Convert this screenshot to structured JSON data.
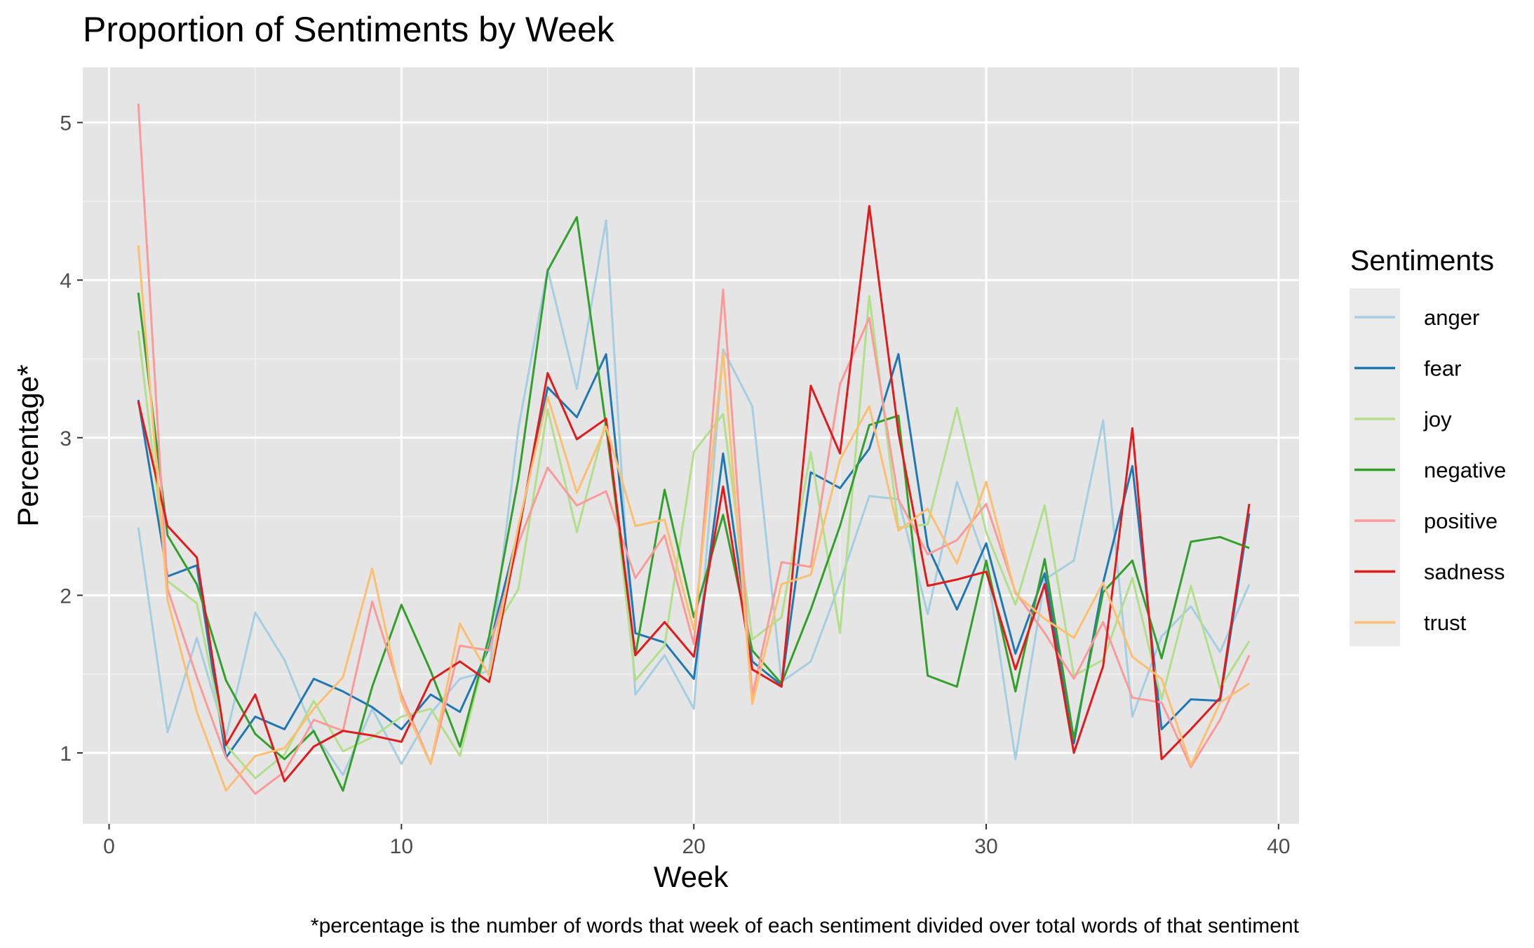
{
  "chart_data": {
    "type": "line",
    "title": "Proportion of Sentiments by Week",
    "xlabel": "Week",
    "ylabel": "Percentage*",
    "caption": "*percentage is the number of words that week of each sentiment divided over total words of that sentiment",
    "legend_title": "Sentiments",
    "legend_position": "right",
    "grid": true,
    "xlim": [
      -0.9,
      40.7
    ],
    "ylim": [
      0.55,
      5.35
    ],
    "x_ticks": [
      0,
      10,
      20,
      30,
      40
    ],
    "x_tick_labels": [
      "0",
      "10",
      "20",
      "30",
      "40"
    ],
    "y_ticks": [
      1,
      2,
      3,
      4,
      5
    ],
    "y_tick_labels": [
      "1",
      "2",
      "3",
      "4",
      "5"
    ],
    "x": [
      1,
      2,
      3,
      4,
      5,
      6,
      7,
      8,
      9,
      10,
      11,
      12,
      13,
      14,
      15,
      16,
      17,
      18,
      19,
      20,
      21,
      22,
      23,
      24,
      25,
      26,
      27,
      28,
      29,
      30,
      31,
      32,
      33,
      34,
      35,
      36,
      37,
      38,
      39
    ],
    "series": [
      {
        "name": "anger",
        "color": "#a6cee3",
        "values": [
          2.43,
          1.13,
          1.73,
          1.1,
          1.89,
          1.59,
          1.13,
          0.86,
          1.28,
          0.93,
          1.25,
          1.47,
          1.52,
          3.06,
          4.07,
          3.31,
          4.38,
          1.37,
          1.62,
          1.28,
          3.56,
          3.2,
          1.45,
          1.58,
          2.08,
          2.63,
          2.61,
          1.88,
          2.72,
          2.2,
          0.96,
          2.1,
          2.22,
          3.11,
          1.23,
          1.74,
          1.93,
          1.64,
          2.07
        ]
      },
      {
        "name": "fear",
        "color": "#1f78b4",
        "values": [
          3.24,
          2.12,
          2.19,
          0.97,
          1.23,
          1.15,
          1.47,
          1.39,
          1.29,
          1.15,
          1.37,
          1.26,
          1.67,
          2.41,
          3.32,
          3.13,
          3.53,
          1.76,
          1.7,
          1.47,
          2.9,
          1.58,
          1.43,
          2.78,
          2.68,
          2.93,
          3.53,
          2.31,
          1.91,
          2.33,
          1.63,
          2.14,
          1.06,
          2.08,
          2.82,
          1.15,
          1.34,
          1.33,
          2.52
        ]
      },
      {
        "name": "joy",
        "color": "#b2df8a",
        "values": [
          3.68,
          2.09,
          1.95,
          1.05,
          0.84,
          0.99,
          1.33,
          1.01,
          1.1,
          1.23,
          1.28,
          0.98,
          1.73,
          2.04,
          3.18,
          2.4,
          3.11,
          1.46,
          1.68,
          2.91,
          3.15,
          1.72,
          1.86,
          2.91,
          1.76,
          3.9,
          2.43,
          2.45,
          3.19,
          2.4,
          1.94,
          2.57,
          1.49,
          1.59,
          2.11,
          1.34,
          2.06,
          1.41,
          1.71
        ]
      },
      {
        "name": "negative",
        "color": "#33a02c",
        "values": [
          3.92,
          2.38,
          2.07,
          1.46,
          1.12,
          0.96,
          1.14,
          0.76,
          1.42,
          1.94,
          1.52,
          1.04,
          1.74,
          2.74,
          4.06,
          4.4,
          3.07,
          1.62,
          2.67,
          1.86,
          2.51,
          1.65,
          1.44,
          1.91,
          2.44,
          3.08,
          3.14,
          1.49,
          1.42,
          2.22,
          1.39,
          2.23,
          1.09,
          2.02,
          2.22,
          1.6,
          2.34,
          2.37,
          2.3
        ]
      },
      {
        "name": "positive",
        "color": "#fb9a99",
        "values": [
          5.12,
          2.04,
          1.48,
          0.97,
          0.74,
          0.88,
          1.21,
          1.14,
          1.96,
          1.37,
          0.93,
          1.68,
          1.65,
          2.33,
          2.81,
          2.57,
          2.66,
          2.11,
          2.38,
          1.69,
          3.94,
          1.36,
          2.21,
          2.18,
          3.34,
          3.76,
          2.61,
          2.26,
          2.35,
          2.58,
          2.02,
          1.76,
          1.47,
          1.83,
          1.35,
          1.32,
          0.91,
          1.21,
          1.62
        ]
      },
      {
        "name": "sadness",
        "color": "#e31a1c",
        "values": [
          3.23,
          2.44,
          2.24,
          1.05,
          1.37,
          0.82,
          1.04,
          1.14,
          1.11,
          1.07,
          1.46,
          1.58,
          1.45,
          2.39,
          3.41,
          2.99,
          3.12,
          1.62,
          1.83,
          1.61,
          2.69,
          1.53,
          1.42,
          3.33,
          2.9,
          4.47,
          3.03,
          2.06,
          2.1,
          2.15,
          1.53,
          2.07,
          1.0,
          1.55,
          3.06,
          0.96,
          1.15,
          1.35,
          2.58
        ]
      },
      {
        "name": "trust",
        "color": "#fdbf6f",
        "values": [
          4.22,
          1.97,
          1.26,
          0.76,
          0.98,
          1.03,
          1.28,
          1.48,
          2.17,
          1.33,
          0.93,
          1.82,
          1.49,
          2.44,
          3.26,
          2.65,
          3.07,
          2.44,
          2.48,
          1.78,
          3.54,
          1.31,
          2.07,
          2.13,
          2.86,
          3.2,
          2.41,
          2.55,
          2.2,
          2.72,
          2.01,
          1.85,
          1.73,
          2.08,
          1.61,
          1.47,
          0.92,
          1.32,
          1.44
        ]
      }
    ]
  },
  "colors": {
    "panel_background": "#e5e5e5",
    "grid_major": "#ffffff",
    "legend_key_background": "#ebebeb"
  }
}
